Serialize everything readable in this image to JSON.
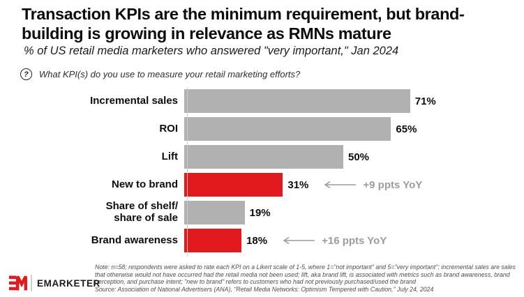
{
  "header": {
    "title": "Transaction KPIs are the minimum requirement, but brand-building is growing in relevance as RMNs mature",
    "subtitle": "% of US retail media marketers who answered \"very important,\" Jan 2024",
    "question_icon": "?",
    "question": "What KPI(s) do you use to measure your retail marketing efforts?"
  },
  "chart_data": {
    "type": "bar",
    "orientation": "horizontal",
    "title": "% of US retail media marketers who answered \"very important,\" Jan 2024",
    "categories": [
      "Incremental sales",
      "ROI",
      "Lift",
      "New to brand",
      "Share of shelf/\nshare of sale",
      "Brand awareness"
    ],
    "values": [
      71,
      65,
      50,
      31,
      19,
      18
    ],
    "value_labels": [
      "71%",
      "65%",
      "50%",
      "31%",
      "19%",
      "18%"
    ],
    "bar_colors": [
      "gray",
      "gray",
      "gray",
      "red",
      "gray",
      "red"
    ],
    "annotations": [
      null,
      null,
      null,
      "+9 ppts YoY",
      null,
      "+16 ppts YoY"
    ],
    "xlim": [
      0,
      75
    ],
    "grid": false,
    "legend": false,
    "colors": {
      "gray": "#b1b1b1",
      "red": "#e31a1d",
      "annotation": "#9c9c9c",
      "axis": "#cccccc"
    }
  },
  "footer": {
    "brand": "EMARKETER",
    "note": "Note: n=58; respondents were asked to rate each KPI on a Likert scale of 1-5, where 1=\"not important\" and 5=\"very important\"; incremental sales are sales that otherwise would not have occurred had the retail media not been used; lift, aka brand lift, is associated with metrics such as brand awareness, brand perception, and purchase intent; \"new to brand\" refers to customers who had not previously purchased/used the brand",
    "source": "Source: Association of National Advertisers (ANA), \"Retail Media Networks: Optimism Tempered with Caution,\" July 24, 2024"
  }
}
